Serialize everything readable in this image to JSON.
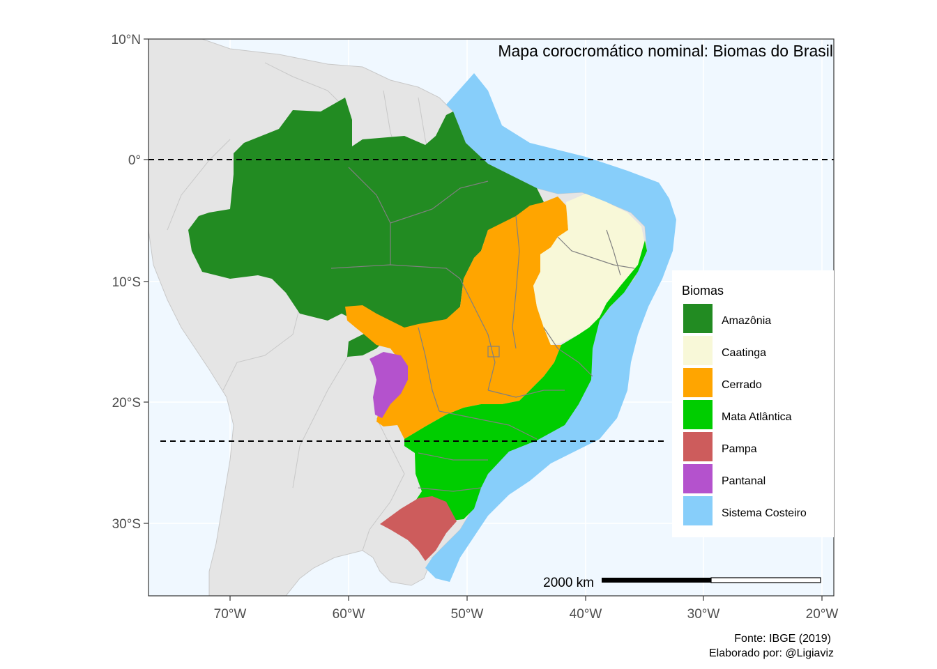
{
  "map": {
    "title": "Mapa corocromático nominal: Biomas do Brasil",
    "ocean_color": "#f0f8ff",
    "land_color": "#e5e5e5",
    "border_color": "#808080",
    "lat_ticks": [
      "10°N",
      "0°",
      "10°S",
      "20°S",
      "30°S"
    ],
    "lon_ticks": [
      "70°W",
      "60°W",
      "50°W",
      "40°W",
      "30°W",
      "20°W"
    ],
    "reference_lines": [
      "Equator",
      "Tropic of Capricorn"
    ]
  },
  "legend": {
    "title": "Biomas",
    "items": [
      {
        "label": "Amazônia",
        "color": "#228b22"
      },
      {
        "label": "Caatinga",
        "color": "#f8f8d8"
      },
      {
        "label": "Cerrado",
        "color": "#ffa500"
      },
      {
        "label": "Mata Atlântica",
        "color": "#00cd00"
      },
      {
        "label": "Pampa",
        "color": "#cd5c5c"
      },
      {
        "label": "Pantanal",
        "color": "#b452cd"
      },
      {
        "label": "Sistema Costeiro",
        "color": "#87cefa"
      }
    ]
  },
  "scale_bar": {
    "label": "2000 km"
  },
  "caption": {
    "source": "Fonte: IBGE (2019)",
    "author": "Elaborado por: @Ligiaviz"
  }
}
